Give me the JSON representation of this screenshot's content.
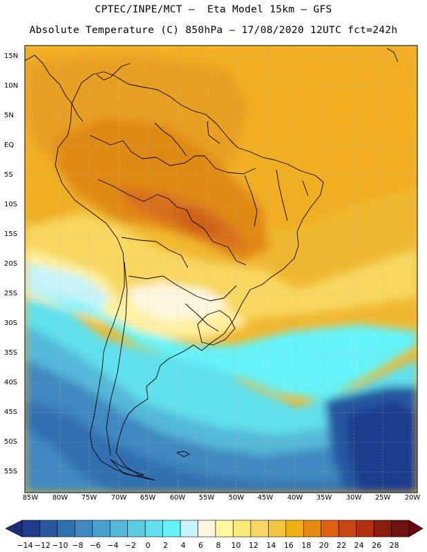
{
  "header": {
    "line1": "CPTEC/INPE/MCT –  Eta Model 15km – GFS",
    "line2": "Absolute Temperature (C) 850hPa – 17/08/2020 12UTC fct=242h"
  },
  "map": {
    "lat_labels": [
      "15N",
      "10N",
      "5N",
      "EQ",
      "5S",
      "10S",
      "15S",
      "20S",
      "25S",
      "30S",
      "35S",
      "40S",
      "45S",
      "50S",
      "55S"
    ],
    "lon_labels": [
      "85W",
      "80W",
      "75W",
      "70W",
      "65W",
      "60W",
      "55W",
      "50W",
      "45W",
      "40W",
      "35W",
      "30W",
      "25W",
      "20W"
    ]
  },
  "colorbar": {
    "labels": [
      "-14",
      "-12",
      "-10",
      "-8",
      "-6",
      "-4",
      "-2",
      "0",
      "2",
      "4",
      "6",
      "8",
      "10",
      "12",
      "14",
      "16",
      "18",
      "20",
      "22",
      "24",
      "26",
      "28"
    ],
    "colors": [
      "#1f3c8c",
      "#2858a0",
      "#3070b0",
      "#3f88c0",
      "#4aa0cc",
      "#55b8d8",
      "#5ccce0",
      "#60e0ec",
      "#66f4f8",
      "#c8f4fa",
      "#fff8e0",
      "#fff8a0",
      "#fcea78",
      "#f8d860",
      "#f4c440",
      "#f0b010",
      "#e88a10",
      "#e06010",
      "#c84410",
      "#b03010",
      "#8c1c10",
      "#701010"
    ],
    "under_color": "#1a2f78",
    "over_color": "#6a0010"
  }
}
